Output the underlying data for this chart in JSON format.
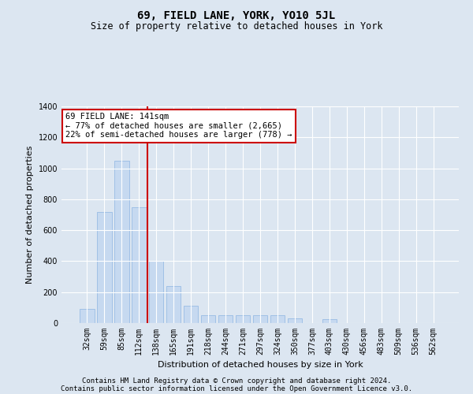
{
  "title": "69, FIELD LANE, YORK, YO10 5JL",
  "subtitle": "Size of property relative to detached houses in York",
  "xlabel": "Distribution of detached houses by size in York",
  "ylabel": "Number of detached properties",
  "categories": [
    "32sqm",
    "59sqm",
    "85sqm",
    "112sqm",
    "138sqm",
    "165sqm",
    "191sqm",
    "218sqm",
    "244sqm",
    "271sqm",
    "297sqm",
    "324sqm",
    "350sqm",
    "377sqm",
    "403sqm",
    "430sqm",
    "456sqm",
    "483sqm",
    "509sqm",
    "536sqm",
    "562sqm"
  ],
  "values": [
    90,
    720,
    1050,
    750,
    400,
    240,
    110,
    50,
    50,
    50,
    50,
    50,
    30,
    0,
    25,
    0,
    0,
    0,
    0,
    0,
    0
  ],
  "bar_color": "#c6d9f0",
  "bar_edge_color": "#8db4e2",
  "vline_color": "#cc0000",
  "vline_x": 3.5,
  "annotation_text": "69 FIELD LANE: 141sqm\n← 77% of detached houses are smaller (2,665)\n22% of semi-detached houses are larger (778) →",
  "annotation_box_color": "#ffffff",
  "annotation_box_edge_color": "#cc0000",
  "ylim": [
    0,
    1400
  ],
  "yticks": [
    0,
    200,
    400,
    600,
    800,
    1000,
    1200,
    1400
  ],
  "bg_color": "#dce6f1",
  "plot_bg_color": "#dce6f1",
  "footer_line1": "Contains HM Land Registry data © Crown copyright and database right 2024.",
  "footer_line2": "Contains public sector information licensed under the Open Government Licence v3.0.",
  "title_fontsize": 10,
  "subtitle_fontsize": 8.5,
  "axis_label_fontsize": 8,
  "tick_fontsize": 7,
  "annotation_fontsize": 7.5,
  "footer_fontsize": 6.5
}
